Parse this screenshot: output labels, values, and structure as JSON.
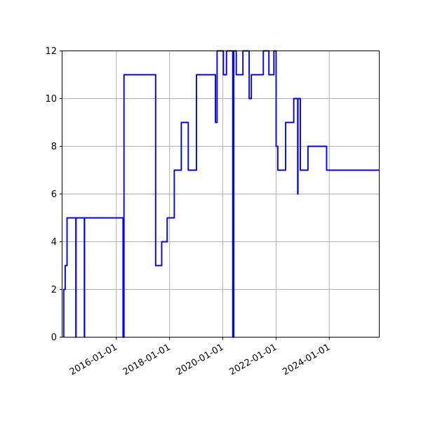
{
  "figure": {
    "background": "#ffffff",
    "title": ""
  },
  "chart_data": {
    "type": "line",
    "step": true,
    "title": "",
    "xlabel": "",
    "ylabel": "",
    "grid": true,
    "legend": null,
    "line_color": "#0000ff",
    "grid_color": "#b0b0b0",
    "spine_color": "#000000",
    "tick_label_color": "#000000",
    "ylim": [
      0,
      12
    ],
    "y_ticks": [
      0,
      2,
      4,
      6,
      8,
      10,
      12
    ],
    "y_tick_labels": [
      "0",
      "2",
      "4",
      "6",
      "8",
      "10",
      "12"
    ],
    "x_tick_labels": [
      "2016-01-01",
      "2018-01-01",
      "2020-01-01",
      "2022-01-01",
      "2024-01-01"
    ],
    "xlim": [
      "2013-12-18",
      "2025-11-17"
    ],
    "x_tick_rotation_deg": 30,
    "steps": [
      [
        "2014-01-10",
        0
      ],
      [
        "2014-01-10",
        2
      ],
      [
        "2014-01-30",
        3
      ],
      [
        "2014-02-25",
        5
      ],
      [
        "2014-06-24",
        0
      ],
      [
        "2014-06-27",
        5
      ],
      [
        "2014-10-19",
        0
      ],
      [
        "2014-10-22",
        5
      ],
      [
        "2016-04-02",
        0
      ],
      [
        "2016-04-15",
        11
      ],
      [
        "2017-06-23",
        3
      ],
      [
        "2017-09-15",
        4
      ],
      [
        "2017-11-29",
        5
      ],
      [
        "2018-03-05",
        7
      ],
      [
        "2018-06-10",
        9
      ],
      [
        "2018-09-14",
        7
      ],
      [
        "2019-01-05",
        11
      ],
      [
        "2019-09-22",
        9
      ],
      [
        "2019-10-14",
        12
      ],
      [
        "2020-01-09",
        11
      ],
      [
        "2020-02-21",
        12
      ],
      [
        "2020-05-16",
        0
      ],
      [
        "2020-05-30",
        12
      ],
      [
        "2020-07-03",
        11
      ],
      [
        "2020-10-03",
        12
      ],
      [
        "2020-12-28",
        10
      ],
      [
        "2021-01-27",
        11
      ],
      [
        "2021-07-09",
        12
      ],
      [
        "2021-09-25",
        11
      ],
      [
        "2021-12-02",
        12
      ],
      [
        "2022-01-02",
        8
      ],
      [
        "2022-01-25",
        7
      ],
      [
        "2022-05-11",
        9
      ],
      [
        "2022-08-31",
        10
      ],
      [
        "2022-10-24",
        6
      ],
      [
        "2022-10-28",
        10
      ],
      [
        "2022-11-30",
        7
      ],
      [
        "2023-03-13",
        8
      ],
      [
        "2023-11-25",
        7
      ],
      [
        "2025-11-17",
        7
      ]
    ]
  }
}
